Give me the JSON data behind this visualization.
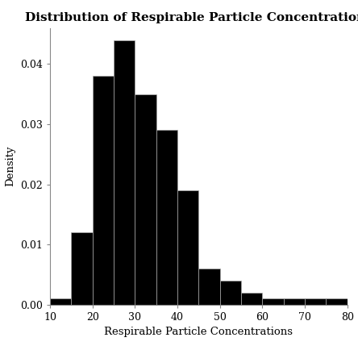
{
  "title": "Distribution of Respirable Particle Concentrations",
  "xlabel": "Respirable Particle Concentrations",
  "ylabel": "Density",
  "bin_edges": [
    10,
    15,
    20,
    25,
    30,
    35,
    40,
    45,
    50,
    55,
    60,
    65,
    70,
    75,
    80
  ],
  "densities": [
    0.001,
    0.012,
    0.038,
    0.044,
    0.035,
    0.029,
    0.019,
    0.006,
    0.004,
    0.002,
    0.001,
    0.001,
    0.001,
    0.001
  ],
  "bar_color": "#000000",
  "edge_color": "#aaaaaa",
  "background_color": "#ffffff",
  "xlim": [
    10,
    80
  ],
  "ylim": [
    0,
    0.046
  ],
  "yticks": [
    0.0,
    0.01,
    0.02,
    0.03,
    0.04
  ],
  "xticks": [
    10,
    20,
    30,
    40,
    50,
    60,
    70,
    80
  ],
  "title_fontsize": 11,
  "label_fontsize": 9.5,
  "tick_fontsize": 9
}
